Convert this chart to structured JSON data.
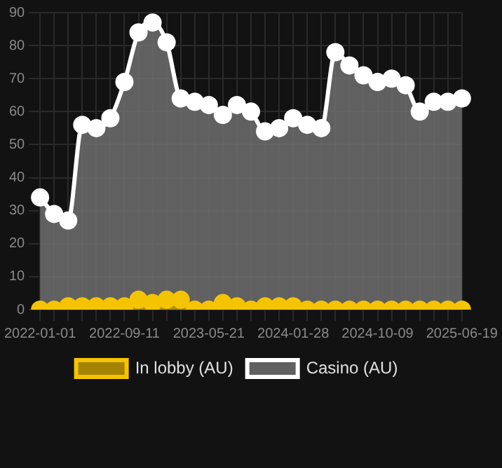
{
  "chart_data": {
    "type": "area",
    "categories": [
      "2022-01-01",
      null,
      null,
      null,
      null,
      null,
      "2022-09-11",
      null,
      null,
      null,
      null,
      null,
      "2023-05-21",
      null,
      null,
      null,
      null,
      null,
      "2024-01-28",
      null,
      null,
      null,
      null,
      null,
      "2024-10-09",
      null,
      null,
      null,
      null,
      null,
      "2025-06-19"
    ],
    "series": [
      {
        "name": "In lobby (AU)",
        "color": "#f5c400",
        "values": [
          0,
          0,
          1,
          1,
          1,
          1,
          1,
          3,
          2,
          3,
          3,
          0,
          0,
          2,
          1,
          0,
          1,
          1,
          1,
          0,
          0,
          0,
          0,
          0,
          0,
          0,
          0,
          0,
          0,
          0,
          0
        ]
      },
      {
        "name": "Casino (AU)",
        "color": "#ffffff",
        "values": [
          34,
          29,
          27,
          56,
          55,
          58,
          69,
          84,
          87,
          81,
          64,
          63,
          62,
          59,
          62,
          60,
          54,
          55,
          58,
          56,
          55,
          78,
          74,
          71,
          69,
          70,
          68,
          60,
          63,
          63,
          64
        ]
      }
    ],
    "ylim": [
      0,
      90
    ],
    "yticks": [
      0,
      10,
      20,
      30,
      40,
      50,
      60,
      70,
      80,
      90
    ],
    "grid": true,
    "legend": "bottom",
    "marker": "circle"
  }
}
